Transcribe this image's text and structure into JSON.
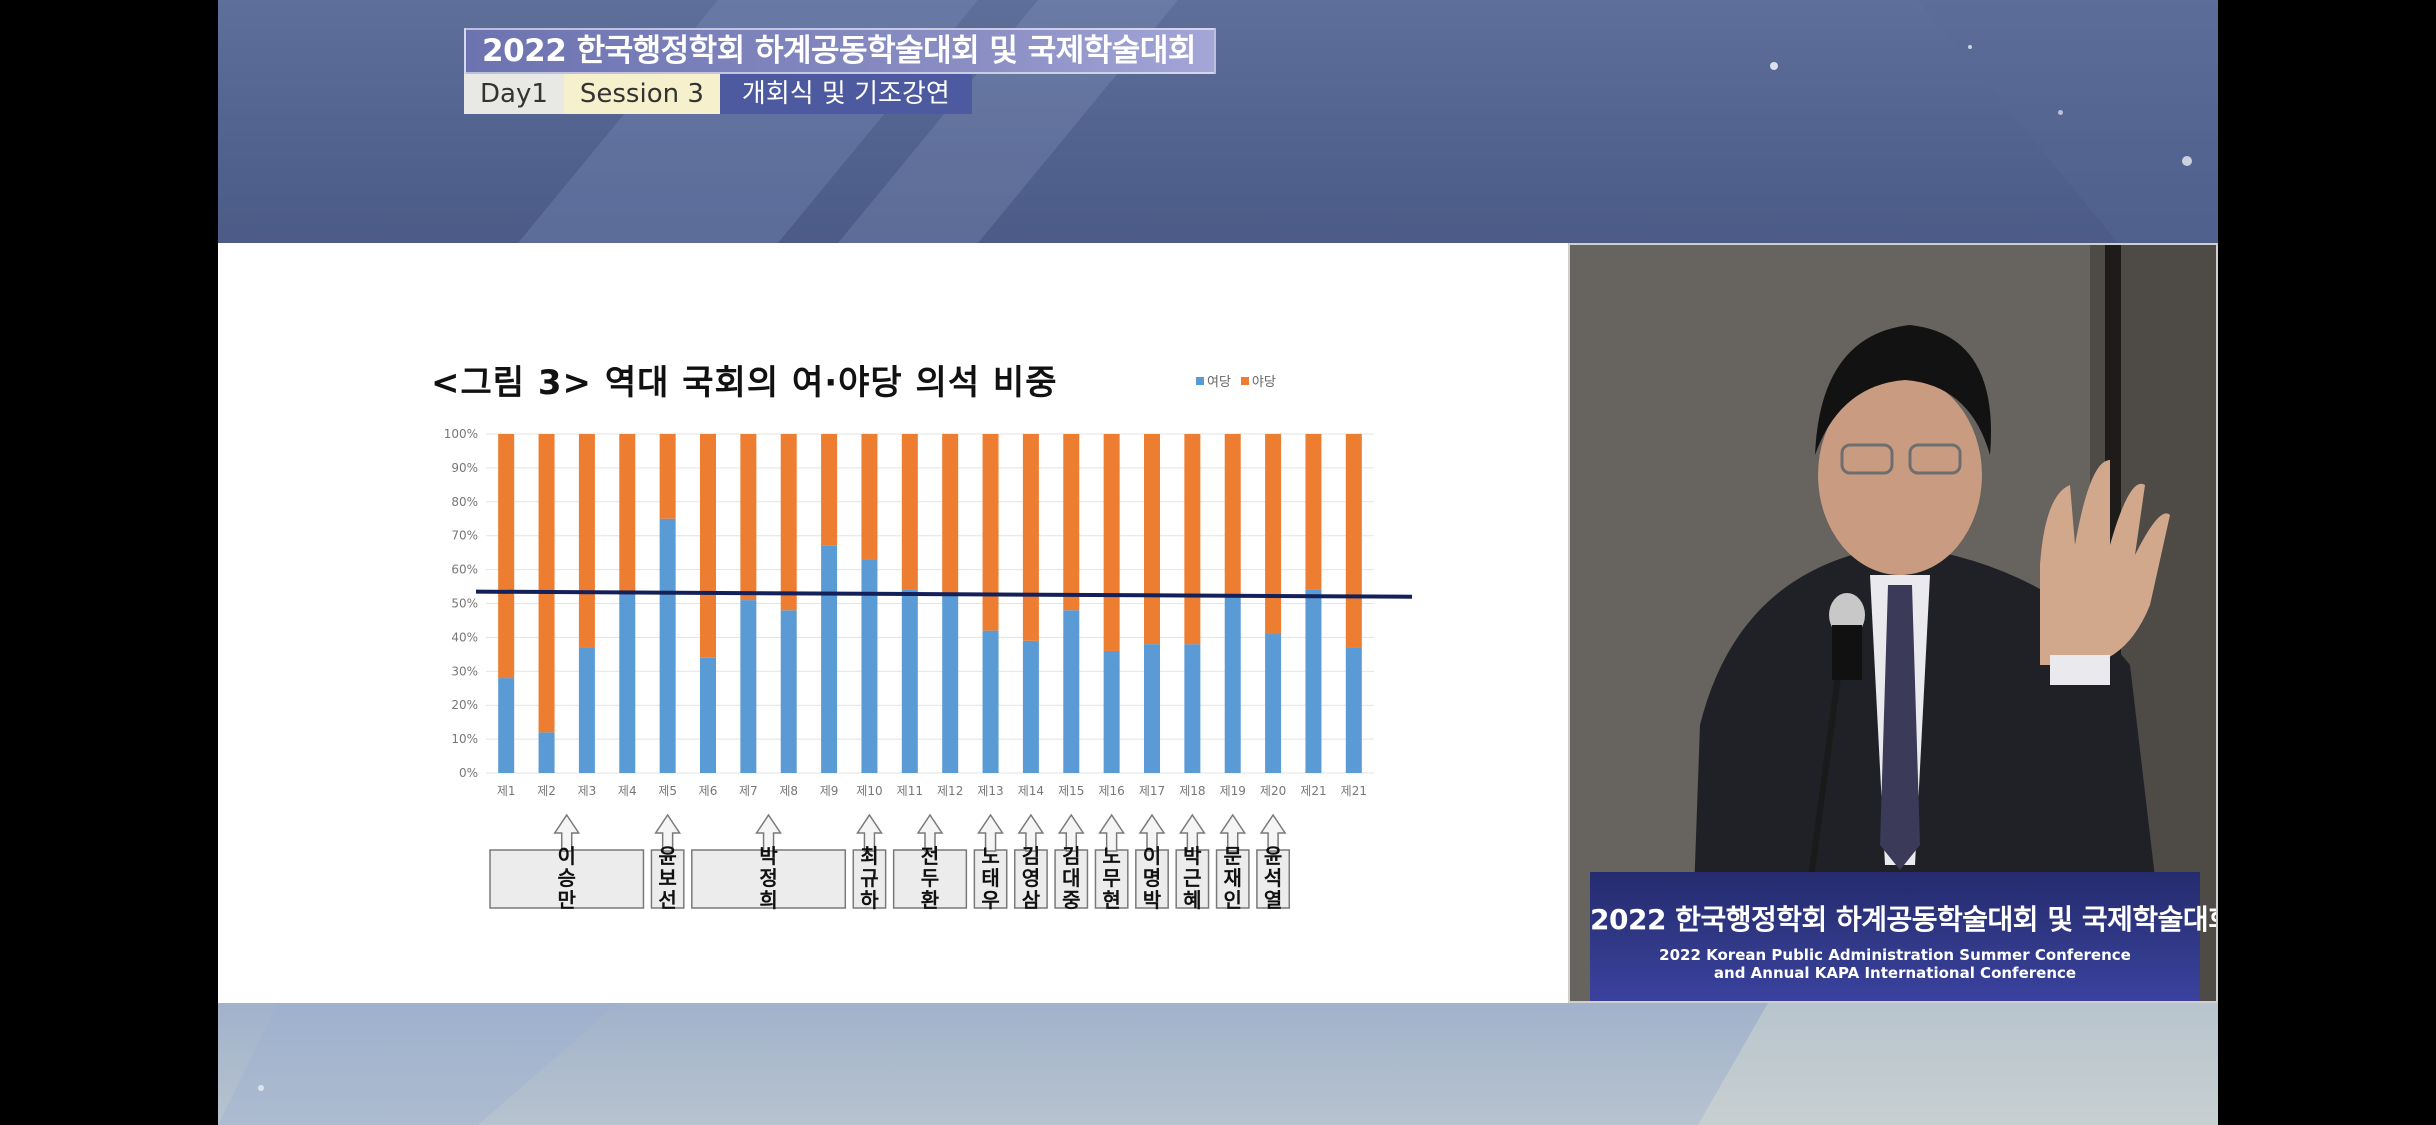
{
  "header": {
    "title": "2022 한국행정학회 하계공동학술대회 및 국제학술대회",
    "day": "Day1",
    "session": "Session 3",
    "session_title": "개회식 및 기조강연"
  },
  "slide": {
    "title": "<그림 3> 역대 국회의 여·야당 의석 비중",
    "legend": [
      {
        "label": "여당",
        "color": "#5b9bd5"
      },
      {
        "label": "야당",
        "color": "#ed7d31"
      }
    ],
    "chart_data": {
      "type": "bar",
      "stacked": true,
      "categories": [
        "제1",
        "제2",
        "제3",
        "제4",
        "제5",
        "제6",
        "제7",
        "제8",
        "제9",
        "제10",
        "제11",
        "제12",
        "제13",
        "제14",
        "제15",
        "제16",
        "제17",
        "제18",
        "제19",
        "제20",
        "제21",
        "제21"
      ],
      "series": [
        {
          "name": "여당",
          "color": "#5b9bd5",
          "values": [
            28,
            12,
            37,
            53,
            75,
            34,
            51,
            48,
            67,
            63,
            54,
            53,
            42,
            39,
            48,
            36,
            38,
            38,
            52,
            41,
            54,
            37
          ]
        },
        {
          "name": "야당",
          "color": "#ed7d31",
          "values": [
            72,
            88,
            63,
            47,
            25,
            66,
            49,
            52,
            33,
            37,
            46,
            47,
            58,
            61,
            52,
            64,
            62,
            62,
            48,
            59,
            46,
            63
          ]
        }
      ],
      "yticks": [
        "0%",
        "10%",
        "20%",
        "30%",
        "40%",
        "50%",
        "60%",
        "70%",
        "80%",
        "90%",
        "100%"
      ],
      "ylim": [
        0,
        100
      ],
      "trend_line": {
        "start": 53.5,
        "end": 52
      },
      "presidents": [
        {
          "name": "이\n승\n만",
          "from": 0,
          "to": 3
        },
        {
          "name": "윤\n보\n선",
          "from": 4,
          "to": 4
        },
        {
          "name": "박\n정\n희",
          "from": 5,
          "to": 8
        },
        {
          "name": "최\n규\n하",
          "from": 9,
          "to": 9
        },
        {
          "name": "전\n두\n환",
          "from": 10,
          "to": 11
        },
        {
          "name": "노\n태\n우",
          "from": 12,
          "to": 12
        },
        {
          "name": "김\n영\n삼",
          "from": 13,
          "to": 13
        },
        {
          "name": "김\n대\n중",
          "from": 14,
          "to": 14
        },
        {
          "name": "노\n무\n현",
          "from": 15,
          "to": 15
        },
        {
          "name": "이\n명\n박",
          "from": 16,
          "to": 16
        },
        {
          "name": "박\n근\n혜",
          "from": 17,
          "to": 17
        },
        {
          "name": "문\n재\n인",
          "from": 18,
          "to": 18
        },
        {
          "name": "윤\n석\n열",
          "from": 19,
          "to": 19
        }
      ]
    }
  },
  "video": {
    "podium_ko": "2022 한국행정학회 하계공동학술대회 및 국제학술대회",
    "podium_en1": "2022 Korean Public Administration Summer Conference",
    "podium_en2": "and Annual KAPA International Conference"
  }
}
